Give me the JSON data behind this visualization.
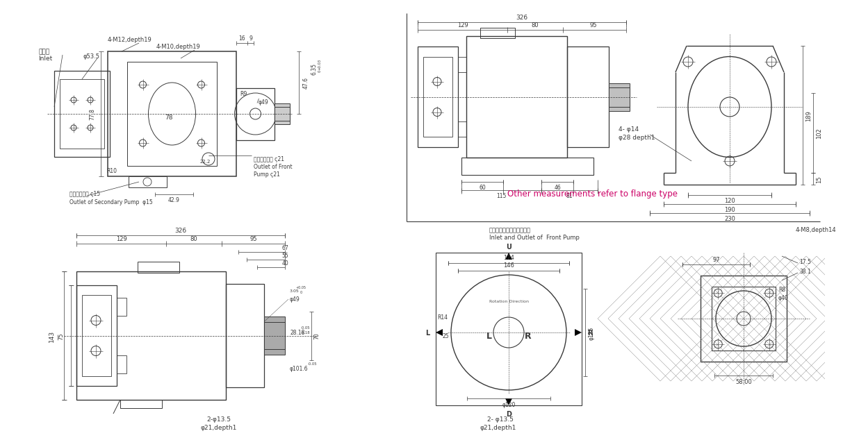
{
  "bg": "#ffffff",
  "lc": "#3a3a3a",
  "rc": "#cc0066",
  "note": "Other measurements refer to flange type",
  "inlet_cn": "入油口",
  "inlet_en": "Inlet",
  "bolt1": "4-M12,depth19",
  "phi535": "φ53.5",
  "bolt2": "4-M10,depth19",
  "front_cn": "前泵浦出油口 ς21",
  "front_en1": "Outlet of Front",
  "front_en2": "Pump ς21",
  "rear_cn": "後泵浦出油口 ς15",
  "rear_en": "Outlet of Secondary Pump  φ15",
  "fp_cn": "前泵浦入油口和出油口方向",
  "fp_en": "Inlet and Outlet of  Front Pump",
  "dim_4M8": "4-M8,depth14",
  "phi14": "4- φ14",
  "phi28d": "φ28 depth1"
}
